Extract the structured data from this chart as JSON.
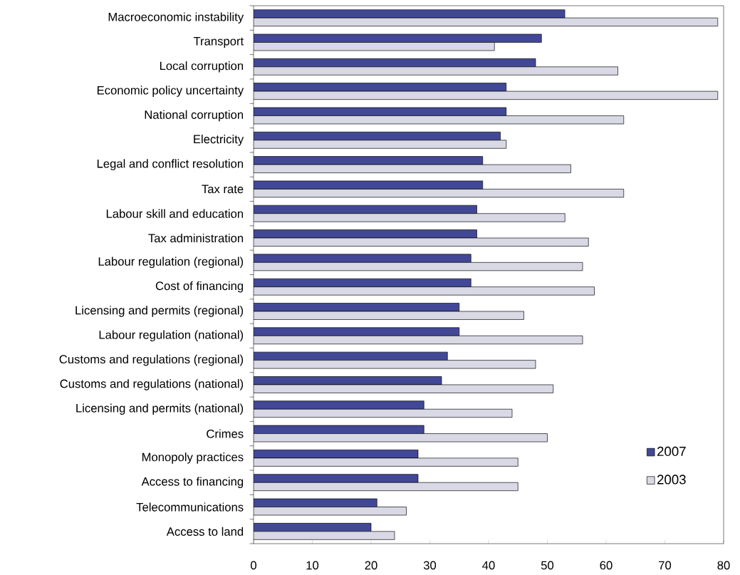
{
  "chart_data": {
    "type": "bar",
    "orientation": "horizontal",
    "categories": [
      "Macroeconomic instability",
      "Transport",
      "Local corruption",
      "Economic policy uncertainty",
      "National corruption",
      "Electricity",
      "Legal and conflict resolution",
      "Tax rate",
      "Labour skill and education",
      "Tax administration",
      "Labour regulation (regional)",
      "Cost of financing",
      "Licensing and permits (regional)",
      "Labour regulation (national)",
      "Customs and regulations (regional)",
      "Customs and regulations (national)",
      "Licensing and permits (national)",
      "Crimes",
      "Monopoly practices",
      "Access to financing",
      "Telecommunications",
      "Access to land"
    ],
    "series": [
      {
        "name": "2007",
        "color": "#424896",
        "values": [
          53,
          49,
          48,
          43,
          43,
          42,
          39,
          39,
          38,
          38,
          37,
          37,
          35,
          35,
          33,
          32,
          29,
          29,
          28,
          28,
          21,
          20
        ]
      },
      {
        "name": "2003",
        "color": "#d9d9e6",
        "values": [
          79,
          41,
          62,
          79,
          63,
          43,
          54,
          63,
          53,
          57,
          56,
          58,
          46,
          56,
          48,
          51,
          44,
          50,
          45,
          45,
          26,
          24
        ]
      }
    ],
    "xlim": [
      0,
      80
    ],
    "xticks": [
      0,
      10,
      20,
      30,
      40,
      50,
      60,
      70,
      80
    ],
    "legend": "bottom right"
  }
}
